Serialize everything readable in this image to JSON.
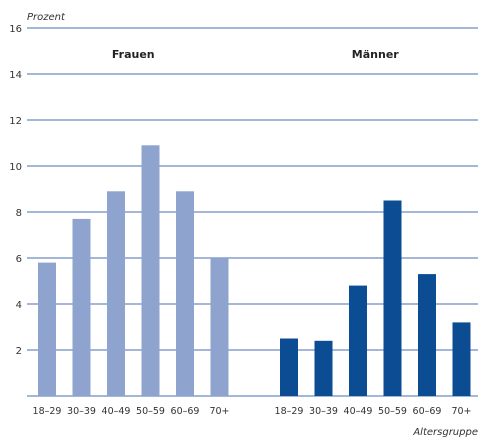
{
  "chart_data": {
    "type": "bar",
    "ylabel": "Prozent",
    "xlabel": "Altersgruppe",
    "ylim": [
      0,
      16
    ],
    "yticks": [
      2,
      4,
      6,
      8,
      10,
      12,
      14,
      16
    ],
    "grid": true,
    "categories": [
      "18–29",
      "30–39",
      "40–49",
      "50–59",
      "60–69",
      "70+"
    ],
    "series": [
      {
        "name": "Frauen",
        "values": [
          5.8,
          7.7,
          8.9,
          10.9,
          8.9,
          6.0
        ],
        "color": "#8fa3cf"
      },
      {
        "name": "Männer",
        "values": [
          2.5,
          2.4,
          4.8,
          8.5,
          5.3,
          3.2
        ],
        "color": "#0b4c92"
      }
    ],
    "colors": {
      "grid": "#4a6fb3",
      "text": "#333333"
    }
  }
}
